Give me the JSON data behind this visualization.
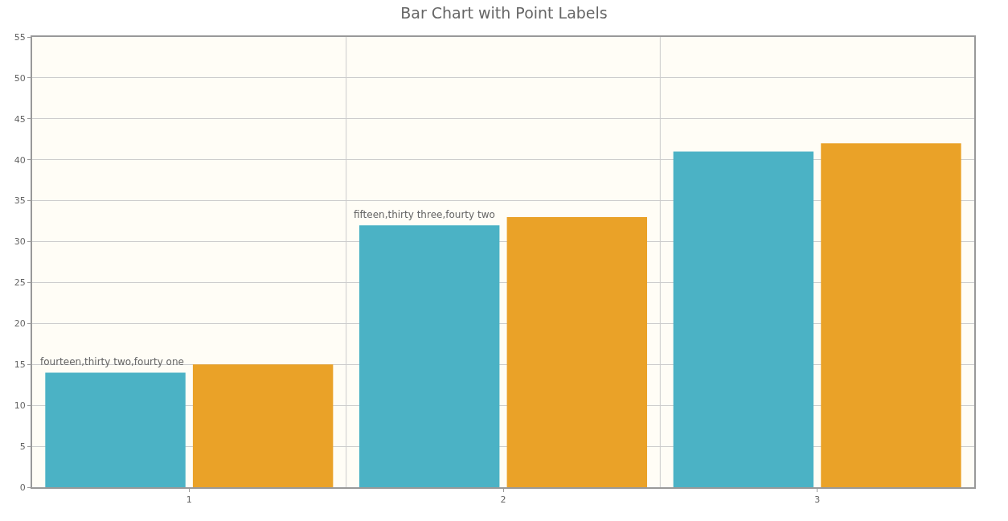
{
  "chart_data": {
    "type": "bar",
    "title": "Bar Chart with Point Labels",
    "categories": [
      "1",
      "2",
      "3"
    ],
    "series": [
      {
        "color": "#4bb2c5",
        "values": [
          14,
          32,
          41
        ]
      },
      {
        "color": "#eaa228",
        "values": [
          15,
          33,
          42
        ]
      }
    ],
    "ylim": [
      0,
      55
    ],
    "yticks": [
      0,
      5,
      10,
      15,
      20,
      25,
      30,
      35,
      40,
      45,
      50,
      55
    ],
    "grid": true,
    "annotations": [
      {
        "text": "fourteen,thirty two,fourty one",
        "x": "1",
        "y": 14
      },
      {
        "text": "fifteen,thirty three,fourty two",
        "x": "2",
        "y": 32
      }
    ]
  }
}
